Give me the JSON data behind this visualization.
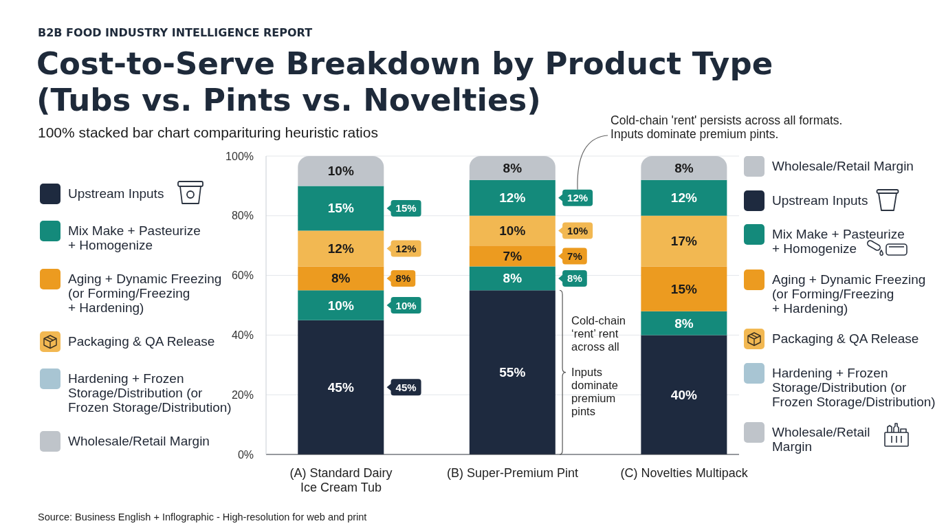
{
  "chart_data": {
    "type": "bar",
    "title": "Cost-to-Serve Breakdown by Product Type (Tubs vs. Pints vs. Novelties)",
    "subtitle": "100% stacked bar chart comparituring heuristic ratios",
    "categories": [
      "(A) Standard Dairy Ice Cream Tub",
      "(B) Super-Premium Pint",
      "(C) Novelties Multipack"
    ],
    "series": [
      {
        "name": "Upstream Inputs",
        "color": "#1e2a3f",
        "values": [
          45,
          55,
          40
        ],
        "value_labels": [
          "45%",
          "55%",
          "40%"
        ]
      },
      {
        "name": "Mix Make + Pasteurize + Homogenize",
        "color": "#148a7b",
        "values": [
          10,
          8,
          8
        ],
        "value_labels": [
          "10%",
          "8%",
          "8%"
        ]
      },
      {
        "name": "Aging + Dynamic Freezing (or Forming/Freezing + Hardening)",
        "color": "#ec9b20",
        "values": [
          8,
          7,
          15
        ],
        "value_labels": [
          "8%",
          "7%",
          "15%"
        ]
      },
      {
        "name": "Packaging & QA Release",
        "color": "#f2b852",
        "values": [
          12,
          10,
          17
        ],
        "value_labels": [
          "12%",
          "10%",
          "17%"
        ]
      },
      {
        "name": "Hardening + Frozen Storage/Distribution (or Frozen Storage/Distribution)",
        "color": "#a8c5d3",
        "values": [
          null,
          null,
          null
        ]
      },
      {
        "color": "#148a7b",
        "values": [
          15,
          12,
          12
        ],
        "value_labels": [
          "15%",
          "12%",
          "12%"
        ]
      },
      {
        "name": "Wholesale/Retail Margin",
        "color": "#bfc4ca",
        "values": [
          10,
          8,
          8
        ],
        "value_labels": [
          "10%",
          "8%",
          "8%"
        ]
      }
    ],
    "stacked": true,
    "ylim": [
      0,
      100
    ],
    "yticks": [
      {
        "value": 0,
        "label": "0%"
      },
      {
        "value": 20,
        "label": "20%"
      },
      {
        "value": 40,
        "label": "40%"
      },
      {
        "value": 60,
        "label": "60%"
      },
      {
        "value": 80,
        "label": "80%"
      },
      {
        "value": 100,
        "label": "100%"
      }
    ],
    "grid": "y",
    "legend": "right",
    "annotations": [
      "B2B FOOD INDUSTRY INTELLIGENCE REPORT",
      "Cold-chain 'rent' persists across all formats. Inputs dominate premium pints.",
      "Cold-chain ‘rent’ rent across all\nInputs dominate premium pints",
      "15%",
      "12%",
      "8%",
      "10%",
      "45%",
      "12%",
      "10%",
      "7%",
      "8%",
      "Source: Business English + Inflographic - High-resolution for web and print"
    ]
  }
}
